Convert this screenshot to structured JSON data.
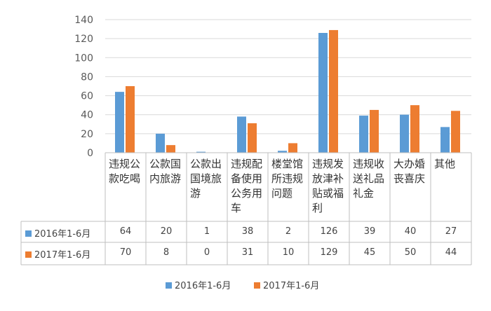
{
  "chart_data": {
    "type": "bar",
    "categories": [
      "违规公款吃喝",
      "公款国内旅游",
      "公款出国境旅游",
      "违规配备使用公务用车",
      "楼堂馆所违规问题",
      "违规发放津补贴或福利",
      "违规收送礼品礼金",
      "大办婚丧喜庆",
      "其他"
    ],
    "series": [
      {
        "name": "2016年1-6月",
        "values": [
          64,
          20,
          1,
          38,
          2,
          126,
          39,
          40,
          27
        ],
        "color": "#5b9bd5"
      },
      {
        "name": "2017年1-6月",
        "values": [
          70,
          8,
          0,
          31,
          10,
          129,
          45,
          50,
          44
        ],
        "color": "#ed7d31"
      }
    ],
    "ylim": [
      0,
      140
    ],
    "yticks": [
      "0",
      "20",
      "40",
      "60",
      "80",
      "100",
      "120",
      "140"
    ],
    "grid": true,
    "legend_position": "bottom",
    "table_rows": [
      {
        "label": "2016年1-6月",
        "cells": [
          "64",
          "20",
          "1",
          "38",
          "2",
          "126",
          "39",
          "40",
          "27"
        ]
      },
      {
        "label": "2017年1-6月",
        "cells": [
          "70",
          "8",
          "0",
          "31",
          "10",
          "129",
          "45",
          "50",
          "44"
        ]
      }
    ]
  }
}
